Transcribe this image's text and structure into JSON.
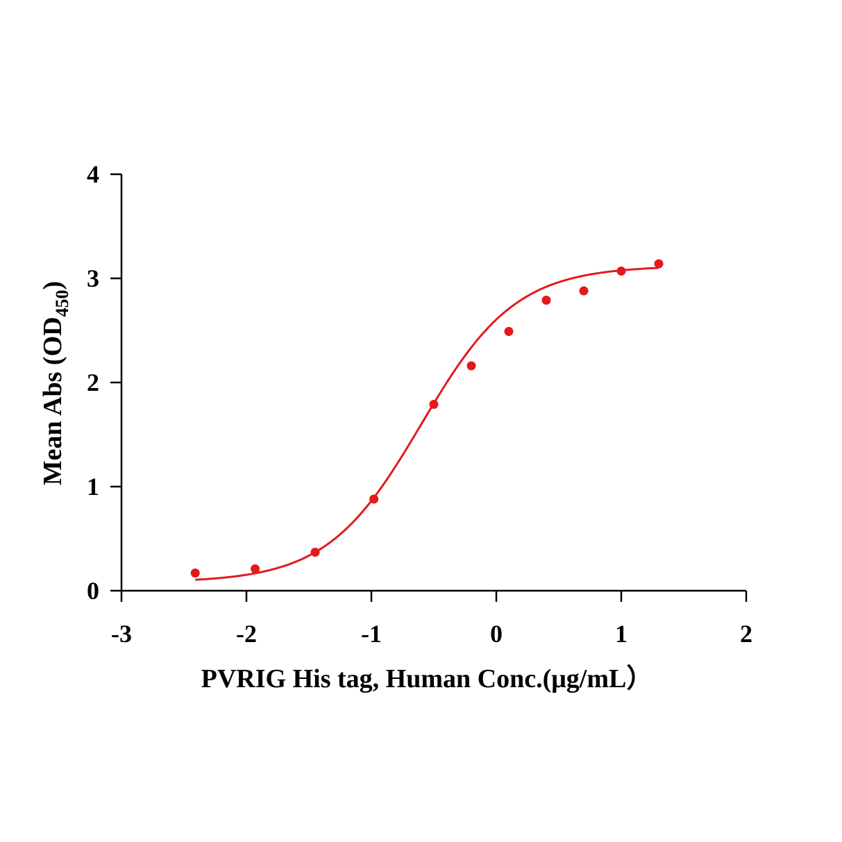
{
  "chart_data": {
    "type": "scatter",
    "title": "",
    "xlabel": "PVRIG His tag, Human  Conc.(μg/mL）",
    "ylabel_main": "Mean Abs (OD",
    "ylabel_sub": "450",
    "ylabel_end": ")",
    "xlim": [
      -3,
      2
    ],
    "ylim": [
      0,
      4
    ],
    "xticks": [
      -3,
      -2,
      -1,
      0,
      1,
      2
    ],
    "xtick_labels": [
      "-3",
      "-2",
      "-1",
      "0",
      "1",
      "2"
    ],
    "yticks": [
      0,
      1,
      2,
      3,
      4
    ],
    "ytick_labels": [
      "0",
      "1",
      "2",
      "3",
      "4"
    ],
    "grid": false,
    "legend": "none",
    "color": "#e31a1c",
    "series": [
      {
        "name": "PVRIG His tag, Human",
        "x": [
          -2.41,
          -1.93,
          -1.45,
          -0.98,
          -0.5,
          -0.2,
          0.1,
          0.4,
          0.7,
          1.0,
          1.3
        ],
        "y": [
          0.17,
          0.21,
          0.37,
          0.88,
          1.79,
          2.16,
          2.49,
          2.79,
          2.88,
          3.07,
          3.14
        ]
      }
    ],
    "fit": {
      "type": "4PL",
      "bottom": 0.08,
      "top": 3.12,
      "logEC50": -0.6,
      "hill": 1.15,
      "x_range": [
        -2.41,
        1.3
      ]
    }
  }
}
